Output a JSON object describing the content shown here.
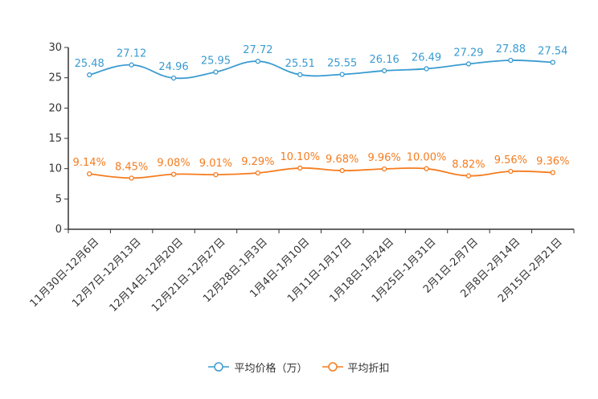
{
  "chart_data": {
    "type": "line",
    "categories": [
      "11月30日-12月6日",
      "12月7日-12月13日",
      "12月14日-12月20日",
      "12月21日-12月27日",
      "12月28日-1月3日",
      "1月4日-1月10日",
      "1月11日-1月17日",
      "1月18日-1月24日",
      "1月25日-1月31日",
      "2月1日-2月7日",
      "2月8日-2月14日",
      "2月15日-2月21日"
    ],
    "ylim": [
      0,
      30
    ],
    "yticks": [
      0,
      5,
      10,
      15,
      20,
      25,
      30
    ],
    "series": [
      {
        "name": "平均价格（万）",
        "color": "#3a9bd1",
        "values": [
          25.48,
          27.12,
          24.96,
          25.95,
          27.72,
          25.51,
          25.55,
          26.16,
          26.49,
          27.29,
          27.88,
          27.54
        ],
        "labels": [
          "25.48",
          "27.12",
          "24.96",
          "25.95",
          "27.72",
          "25.51",
          "25.55",
          "26.16",
          "26.49",
          "27.29",
          "27.88",
          "27.54"
        ]
      },
      {
        "name": "平均折扣",
        "color": "#f57c1f",
        "values": [
          9.14,
          8.45,
          9.08,
          9.01,
          9.29,
          10.1,
          9.68,
          9.96,
          10.0,
          8.82,
          9.56,
          9.36
        ],
        "labels": [
          "9.14%",
          "8.45%",
          "9.08%",
          "9.01%",
          "9.29%",
          "10.10%",
          "9.68%",
          "9.96%",
          "10.00%",
          "8.82%",
          "9.56%",
          "9.36%"
        ]
      }
    ]
  }
}
